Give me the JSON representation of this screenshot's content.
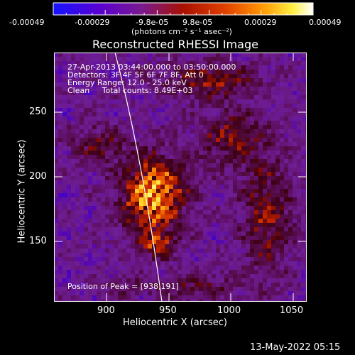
{
  "colorbar": {
    "tick_labels": [
      "-0.00049",
      "-0.00029",
      "-9.8e-05",
      "9.8e-05",
      "0.00029",
      "0.00049"
    ],
    "unit_label": "(photons cm⁻² s⁻¹ asec⁻²)",
    "colors": [
      "#1414ff",
      "#6a00c8",
      "#7a1a90",
      "#a81000",
      "#e04000",
      "#ff9400",
      "#ffee40",
      "#ffffff"
    ]
  },
  "plot": {
    "title": "Reconstructed RHESSI Image",
    "xlabel": "Heliocentric X (arcsec)",
    "ylabel": "Heliocentric Y (arcsec)",
    "x_ticks": [
      "900",
      "950",
      "1000",
      "1050"
    ],
    "y_ticks": [
      "250",
      "200",
      "150"
    ],
    "info_lines": [
      "27-Apr-2013 03:44:00.000 to 03:50:00.000",
      "Detectors: 3F 4F 5F 6F 7F 8F, Att 0",
      "Energy Range: 12.0 - 25.0 keV",
      "Clean     Total counts: 8.49E+03"
    ],
    "peak_label": "Position of Peak = [938,191]"
  },
  "footer": {
    "timestamp": "13-May-2022 05:15"
  }
}
